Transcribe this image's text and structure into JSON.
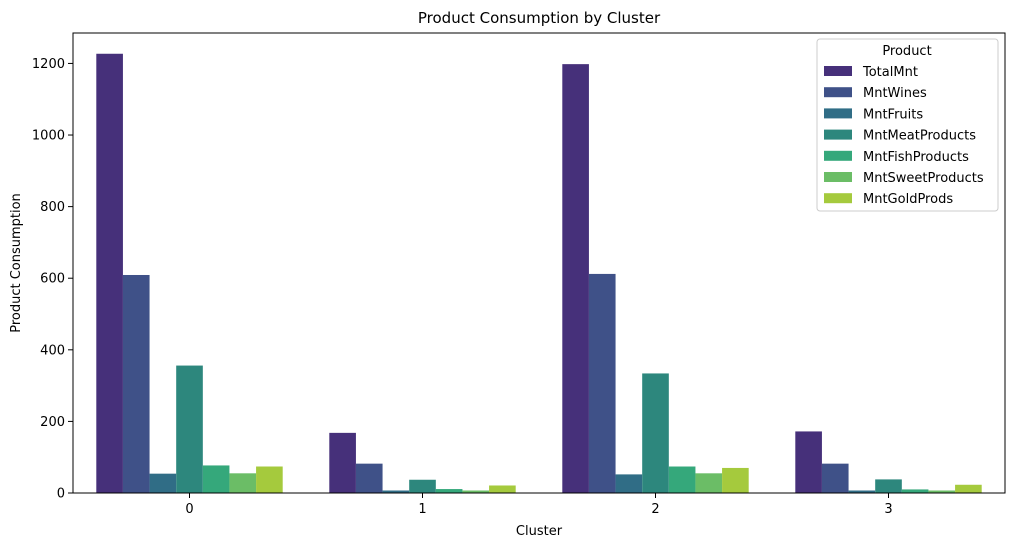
{
  "chart_data": {
    "type": "bar",
    "title": "Product Consumption by Cluster",
    "xlabel": "Cluster",
    "ylabel": "Product Consumption",
    "categories": [
      "0",
      "1",
      "2",
      "3"
    ],
    "ylim": [
      0,
      1285
    ],
    "yticks": [
      0,
      200,
      400,
      600,
      800,
      1000,
      1200
    ],
    "grid": false,
    "legend": {
      "title": "Product",
      "position": "top-right"
    },
    "series": [
      {
        "name": "TotalMnt",
        "color": "#46307a",
        "values": [
          1227,
          168,
          1198,
          172
        ]
      },
      {
        "name": "MntWines",
        "color": "#3f5188",
        "values": [
          609,
          82,
          612,
          82
        ]
      },
      {
        "name": "MntFruits",
        "color": "#306d86",
        "values": [
          54,
          7,
          52,
          7
        ]
      },
      {
        "name": "MntMeatProducts",
        "color": "#2d877d",
        "values": [
          356,
          37,
          334,
          38
        ]
      },
      {
        "name": "MntFishProducts",
        "color": "#35a87b",
        "values": [
          77,
          11,
          74,
          10
        ]
      },
      {
        "name": "MntSweetProducts",
        "color": "#6bbd66",
        "values": [
          55,
          7,
          55,
          7
        ]
      },
      {
        "name": "MntGoldProds",
        "color": "#a5ca3d",
        "values": [
          74,
          21,
          70,
          23
        ]
      }
    ]
  }
}
